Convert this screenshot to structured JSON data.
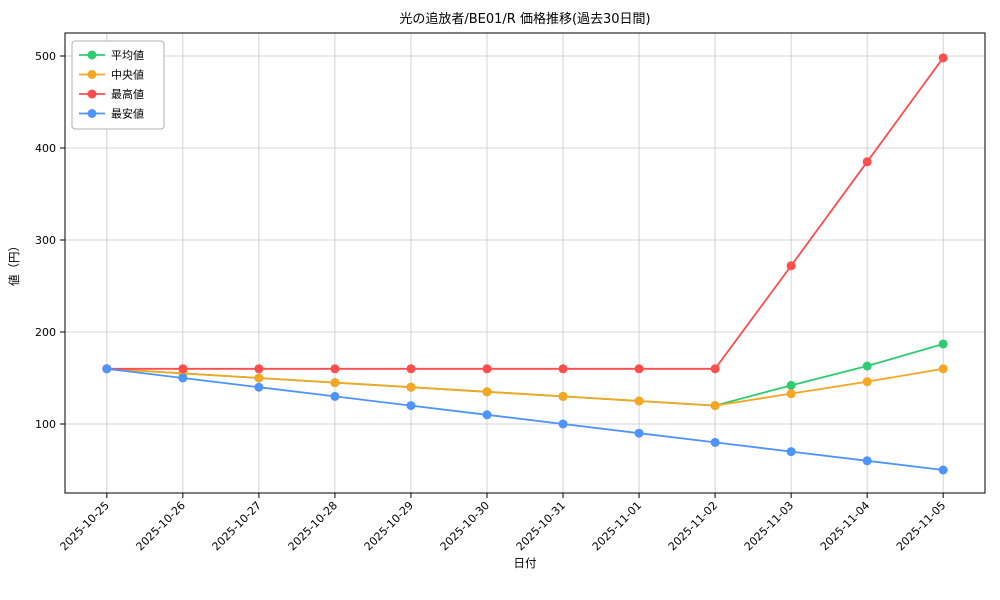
{
  "chart_data": {
    "type": "line",
    "title": "光の追放者/BE01/R 価格推移(過去30日間)",
    "xlabel": "日付",
    "ylabel": "値（円）",
    "categories": [
      "2025-10-25",
      "2025-10-26",
      "2025-10-27",
      "2025-10-28",
      "2025-10-29",
      "2025-10-30",
      "2025-10-31",
      "2025-11-01",
      "2025-11-02",
      "2025-11-03",
      "2025-11-04",
      "2025-11-05"
    ],
    "series": [
      {
        "name": "平均値",
        "color": "#2ecc71",
        "values": [
          160,
          155,
          150,
          145,
          140,
          135,
          130,
          125,
          120,
          142,
          163,
          187
        ]
      },
      {
        "name": "中央値",
        "color": "#f5a623",
        "values": [
          160,
          155,
          150,
          145,
          140,
          135,
          130,
          125,
          120,
          133,
          146,
          160
        ]
      },
      {
        "name": "最高値",
        "color": "#ff4d4d",
        "values": [
          160,
          160,
          160,
          160,
          160,
          160,
          160,
          160,
          160,
          272,
          385,
          498
        ]
      },
      {
        "name": "最安値",
        "color": "#4d94ff",
        "values": [
          160,
          150,
          140,
          130,
          120,
          110,
          100,
          90,
          80,
          70,
          60,
          50
        ]
      }
    ],
    "ylim": [
      25,
      525
    ],
    "yticks": [
      100,
      200,
      300,
      400,
      500
    ],
    "grid": true,
    "legend_position": "upper left"
  }
}
